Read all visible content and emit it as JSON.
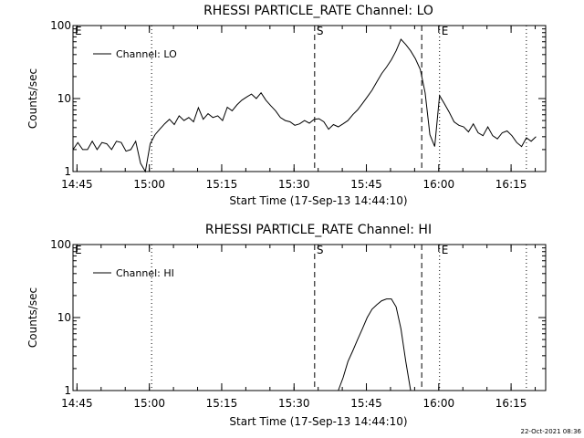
{
  "footer": "22-Oct-2021 08:36",
  "chart_data": [
    {
      "type": "line",
      "title": "RHESSI PARTICLE_RATE Channel: LO",
      "ylabel": "Counts/sec",
      "xlabel": "Start Time (17-Sep-13 14:44:10)",
      "yscale": "log",
      "ylim": [
        1,
        100
      ],
      "xlim_minutes_after_14_44_10": [
        0,
        98
      ],
      "y_tick_labels": [
        "1",
        "10",
        "100"
      ],
      "x_tick_labels": [
        "14:45",
        "15:00",
        "15:15",
        "15:30",
        "15:45",
        "16:00",
        "16:15"
      ],
      "x_tick_minutes": [
        0.83,
        15.83,
        30.83,
        45.83,
        60.83,
        75.83,
        90.83
      ],
      "legend": "Channel: LO",
      "markers": [
        {
          "label": "E",
          "minute": 0,
          "style": "none"
        },
        {
          "label": "",
          "minute": 16.3,
          "style": "dotted"
        },
        {
          "label": "S",
          "minute": 50.1,
          "style": "dashed"
        },
        {
          "label": "",
          "minute": 72.3,
          "style": "dashed"
        },
        {
          "label": "E",
          "minute": 76.0,
          "style": "dotted"
        },
        {
          "label": "",
          "minute": 94.0,
          "style": "dotted"
        }
      ],
      "series": [
        {
          "name": "Channel: LO",
          "x": [
            0,
            1,
            2,
            3,
            4,
            5,
            6,
            7,
            8,
            9,
            10,
            11,
            12,
            13,
            14,
            15,
            16,
            17,
            18,
            19,
            20,
            21,
            22,
            23,
            24,
            25,
            26,
            27,
            28,
            29,
            30,
            31,
            32,
            33,
            34,
            35,
            36,
            37,
            38,
            39,
            40,
            41,
            42,
            43,
            44,
            45,
            46,
            47,
            48,
            49,
            50,
            51,
            52,
            53,
            54,
            55,
            56,
            57,
            58,
            59,
            60,
            61,
            62,
            63,
            64,
            65,
            66,
            67,
            68,
            69,
            70,
            71,
            72,
            73,
            74,
            75,
            76,
            77,
            78,
            79,
            80,
            81,
            82,
            83,
            84,
            85,
            86,
            87,
            88,
            89,
            90,
            91,
            92,
            93,
            94,
            95,
            96
          ],
          "values": [
            2,
            2.5,
            2,
            2,
            2.6,
            2,
            2.5,
            2.4,
            2,
            2.6,
            2.5,
            1.9,
            2,
            2.6,
            1.3,
            1,
            2.4,
            3.2,
            3.8,
            4.5,
            5.2,
            4.4,
            5.8,
            5,
            5.5,
            4.8,
            7.5,
            5.2,
            6.2,
            5.5,
            5.8,
            5,
            7.6,
            6.8,
            8.2,
            9.5,
            10.5,
            11.5,
            10,
            12,
            9.5,
            8,
            6.8,
            5.5,
            5,
            4.8,
            4.3,
            4.5,
            5,
            4.6,
            5.2,
            5.3,
            4.8,
            3.8,
            4.4,
            4.1,
            4.5,
            5,
            6,
            7,
            8.5,
            10.5,
            13,
            17,
            22,
            27,
            34,
            45,
            65,
            55,
            45,
            35,
            25,
            12,
            3.2,
            2.2,
            11,
            8.5,
            6.5,
            4.8,
            4.3,
            4.1,
            3.5,
            4.5,
            3.4,
            3.1,
            4.1,
            3.1,
            2.8,
            3.4,
            3.6,
            3.1,
            2.5,
            2.2,
            2.9,
            2.6,
            3
          ]
        }
      ]
    },
    {
      "type": "line",
      "title": "RHESSI PARTICLE_RATE Channel: HI",
      "ylabel": "Counts/sec",
      "xlabel": "Start Time (17-Sep-13 14:44:10)",
      "yscale": "log",
      "ylim": [
        1,
        100
      ],
      "xlim_minutes_after_14_44_10": [
        0,
        98
      ],
      "y_tick_labels": [
        "1",
        "10",
        "100"
      ],
      "x_tick_labels": [
        "14:45",
        "15:00",
        "15:15",
        "15:30",
        "15:45",
        "16:00",
        "16:15"
      ],
      "x_tick_minutes": [
        0.83,
        15.83,
        30.83,
        45.83,
        60.83,
        75.83,
        90.83
      ],
      "legend": "Channel: HI",
      "markers": [
        {
          "label": "E",
          "minute": 0,
          "style": "none"
        },
        {
          "label": "",
          "minute": 16.3,
          "style": "dotted"
        },
        {
          "label": "S",
          "minute": 50.1,
          "style": "dashed"
        },
        {
          "label": "",
          "minute": 72.3,
          "style": "dashed"
        },
        {
          "label": "E",
          "minute": 76.0,
          "style": "dotted"
        },
        {
          "label": "",
          "minute": 94.0,
          "style": "dotted"
        }
      ],
      "series": [
        {
          "name": "Channel: HI",
          "x": [
            55,
            56,
            57,
            58,
            59,
            60,
            61,
            62,
            63,
            64,
            65,
            66,
            67,
            68,
            69,
            70
          ],
          "values": [
            1,
            1.5,
            2.5,
            3.5,
            5,
            7,
            10,
            13,
            15,
            17,
            18,
            18,
            14,
            7,
            2.5,
            1
          ]
        }
      ]
    }
  ]
}
